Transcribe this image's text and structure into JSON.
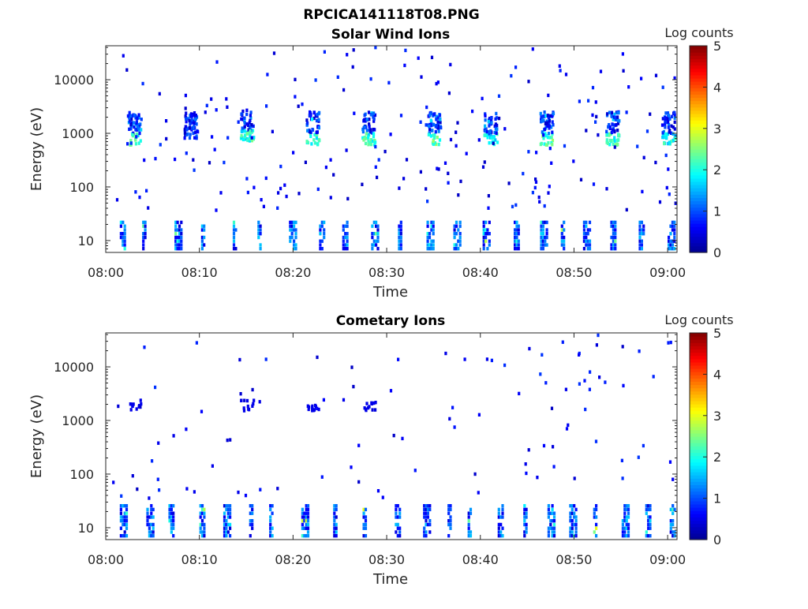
{
  "figure_title": "RPCICA141118T08.PNG",
  "colors": {
    "colormap": [
      "#00008f",
      "#0000ff",
      "#0080ff",
      "#00ffff",
      "#80ff80",
      "#ffff00",
      "#ff8000",
      "#ff0000",
      "#800000"
    ],
    "axis": "#262626"
  },
  "chart_data": [
    {
      "type": "heatmap",
      "title": "Solar Wind Ions",
      "xlabel": "Time",
      "ylabel": "Energy (eV)",
      "yscale": "log",
      "x_range": [
        "08:00",
        "09:01"
      ],
      "y_range": [
        6,
        43000
      ],
      "x_ticks": [
        "08:00",
        "08:10",
        "08:20",
        "08:30",
        "08:40",
        "08:50",
        "09:00"
      ],
      "y_ticks": [
        {
          "value": 10,
          "label": "10"
        },
        {
          "value": 100,
          "label": "100"
        },
        {
          "value": 1000,
          "label": "1000"
        },
        {
          "value": 10000,
          "label": "10000"
        }
      ],
      "colorbar": {
        "label": "Log counts",
        "range": [
          0,
          5
        ],
        "ticks": [
          "0",
          "1",
          "2",
          "3",
          "4",
          "5"
        ]
      },
      "bursts": [
        {
          "t": "08:03",
          "energy_range": [
            600,
            2500
          ],
          "peak_log_counts": 2.5
        },
        {
          "t": "08:09",
          "energy_range": [
            800,
            2400
          ],
          "peak_log_counts": 1.2
        },
        {
          "t": "08:15",
          "energy_range": [
            700,
            2700
          ],
          "peak_log_counts": 2.5
        },
        {
          "t": "08:22",
          "energy_range": [
            600,
            2500
          ],
          "peak_log_counts": 2.5
        },
        {
          "t": "08:28",
          "energy_range": [
            600,
            2500
          ],
          "peak_log_counts": 2.5
        },
        {
          "t": "08:35",
          "energy_range": [
            600,
            2500
          ],
          "peak_log_counts": 2.7
        },
        {
          "t": "08:41",
          "energy_range": [
            600,
            2500
          ],
          "peak_log_counts": 2.3
        },
        {
          "t": "08:47",
          "energy_range": [
            600,
            2500
          ],
          "peak_log_counts": 2.7
        },
        {
          "t": "08:54",
          "energy_range": [
            600,
            2500
          ],
          "peak_log_counts": 2.6
        },
        {
          "t": "09:00",
          "energy_range": [
            600,
            2500
          ],
          "peak_log_counts": 2.3
        }
      ],
      "low_energy_band": {
        "energy_range": [
          6,
          25
        ],
        "peak_log_counts": 2.8
      }
    },
    {
      "type": "heatmap",
      "title": "Cometary Ions",
      "xlabel": "Time",
      "ylabel": "Energy (eV)",
      "yscale": "log",
      "x_range": [
        "08:00",
        "09:01"
      ],
      "y_range": [
        6,
        43000
      ],
      "x_ticks": [
        "08:00",
        "08:10",
        "08:20",
        "08:30",
        "08:40",
        "08:50",
        "09:00"
      ],
      "y_ticks": [
        {
          "value": 10,
          "label": "10"
        },
        {
          "value": 100,
          "label": "100"
        },
        {
          "value": 1000,
          "label": "1000"
        },
        {
          "value": 10000,
          "label": "10000"
        }
      ],
      "colorbar": {
        "label": "Log counts",
        "range": [
          0,
          5
        ],
        "ticks": [
          "0",
          "1",
          "2",
          "3",
          "4",
          "5"
        ]
      },
      "bursts": [
        {
          "t": "08:03",
          "energy_range": [
            1500,
            2500
          ],
          "peak_log_counts": 0.5
        },
        {
          "t": "08:15",
          "energy_range": [
            1500,
            2600
          ],
          "peak_log_counts": 0.5
        },
        {
          "t": "08:22",
          "energy_range": [
            1500,
            2200
          ],
          "peak_log_counts": 0.5
        },
        {
          "t": "08:28",
          "energy_range": [
            1500,
            2200
          ],
          "peak_log_counts": 0.5
        }
      ],
      "low_energy_band": {
        "energy_range": [
          6,
          30
        ],
        "peak_log_counts": 3.0
      }
    }
  ]
}
